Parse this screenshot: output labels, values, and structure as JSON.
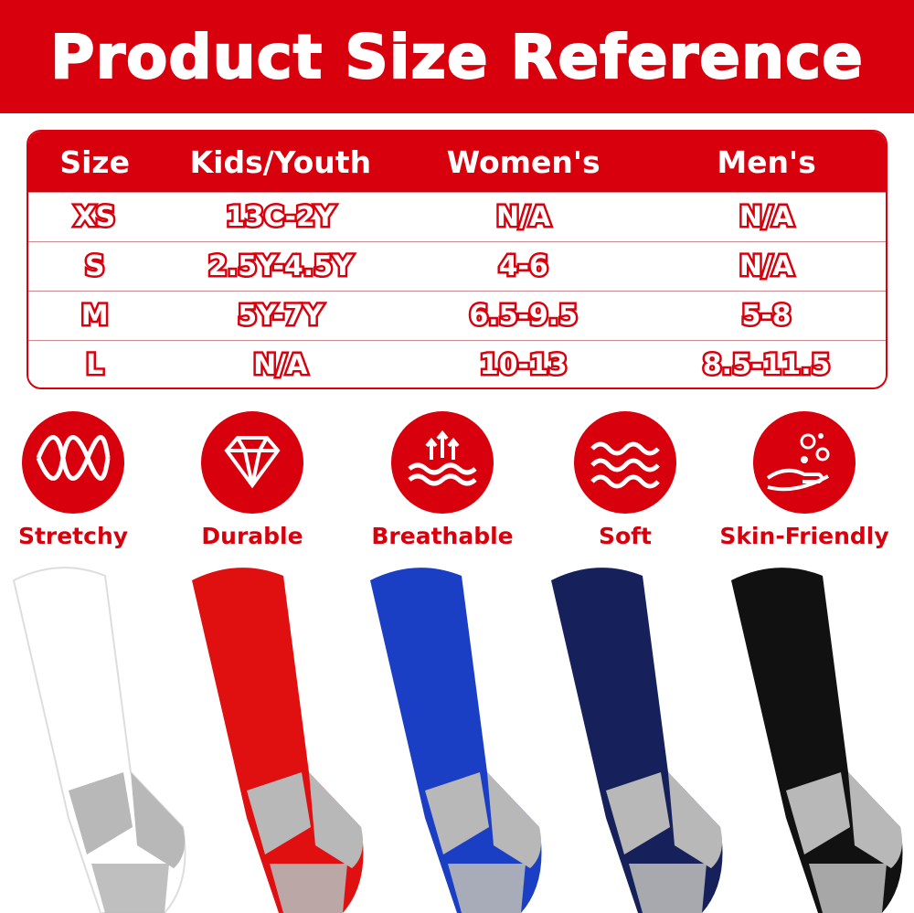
{
  "title": "Product Size Reference",
  "table": {
    "headers": [
      "Size",
      "Kids/Youth",
      "Women's",
      "Men's"
    ],
    "rows": [
      [
        "XS",
        "13C-2Y",
        "N/A",
        "N/A"
      ],
      [
        "S",
        "2.5Y-4.5Y",
        "4-6",
        "N/A"
      ],
      [
        "M",
        "5Y-7Y",
        "6.5-9.5",
        "5-8"
      ],
      [
        "L",
        "N/A",
        "10-13",
        "8.5-11.5"
      ]
    ]
  },
  "features": [
    {
      "label": "Stretchy",
      "icon": "wave-spring-icon"
    },
    {
      "label": "Durable",
      "icon": "diamond-icon"
    },
    {
      "label": "Breathable",
      "icon": "air-arrows-icon"
    },
    {
      "label": "Soft",
      "icon": "soft-waves-icon"
    },
    {
      "label": "Skin-Friendly",
      "icon": "hand-bubbles-icon"
    }
  ],
  "colors": {
    "brand": "#d8000c",
    "socks": [
      "#ffffff",
      "#e01010",
      "#1a3fc4",
      "#16205a",
      "#111111"
    ],
    "heel": "#b8b8b8"
  }
}
